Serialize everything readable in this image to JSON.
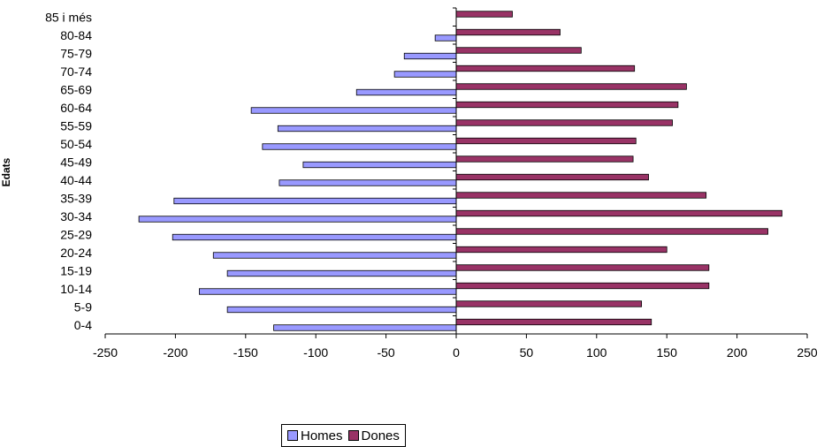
{
  "chart_data": {
    "type": "bar",
    "orientation": "horizontal",
    "ylabel": "Edats",
    "categories": [
      "0-4",
      "5-9",
      "10-14",
      "15-19",
      "20-24",
      "25-29",
      "30-34",
      "35-39",
      "40-44",
      "45-49",
      "50-54",
      "55-59",
      "60-64",
      "65-69",
      "70-74",
      "75-79",
      "80-84",
      "85 i més"
    ],
    "series": [
      {
        "name": "Homes",
        "color": "#9999ff",
        "values": [
          -130,
          -163,
          -183,
          -163,
          -173,
          -202,
          -226,
          -201,
          -126,
          -109,
          -138,
          -127,
          -146,
          -71,
          -44,
          -37,
          -15,
          0
        ]
      },
      {
        "name": "Dones",
        "color": "#993366",
        "values": [
          139,
          132,
          180,
          180,
          150,
          222,
          232,
          178,
          137,
          126,
          128,
          154,
          158,
          164,
          127,
          89,
          74,
          40
        ]
      }
    ],
    "xticks": [
      "-250",
      "-200",
      "-150",
      "-100",
      "-50",
      "0",
      "50",
      "100",
      "150",
      "200",
      "250"
    ],
    "xlim": [
      -250,
      250
    ],
    "legend_position": "bottom"
  }
}
